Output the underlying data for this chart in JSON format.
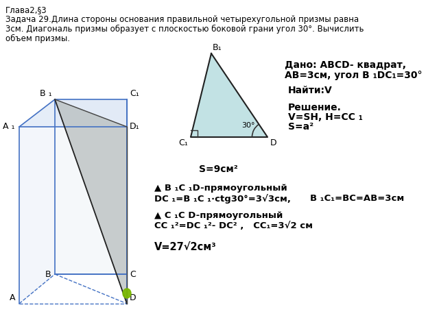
{
  "title_line1": "Глава2,§3",
  "title_line2": "Задача 29.Длина стороны основания правильной четырехугольной призмы равна",
  "title_line3": "3см. Диагональ призмы образует с плоскостью боковой грани угол 30°. Вычислить",
  "title_line4": "объем призмы.",
  "bg_color": "#ffffff",
  "prism_color_edge": "#4472C4",
  "dado_text": "Дано: ABCD- квадрат,",
  "dado_text2": "АВ=3см, угол В ₁DС₁=30°",
  "nayti_text": "Найти:V",
  "reshenie_text": "Решение.",
  "reshenie2": "V=SH, H=CC ₁",
  "reshenie3": "S=a²",
  "s9": "S=9см²",
  "triangle_label1": "▲ B ₁C ₁D-прямоугольный",
  "triangle_label2": "DC ₁=B ₁C ₁·ctg30°=3√3см,",
  "triangle_label2b": "B ₁C₁=BC=AB=3см",
  "triangle_label3": "▲ C ₁C D-прямоугольный",
  "triangle_label4": "CC ₁²=DC ₁²- DC² ,   CC₁=3√2 см",
  "volume_text": "V=27√2см³",
  "angle_label": "30°"
}
